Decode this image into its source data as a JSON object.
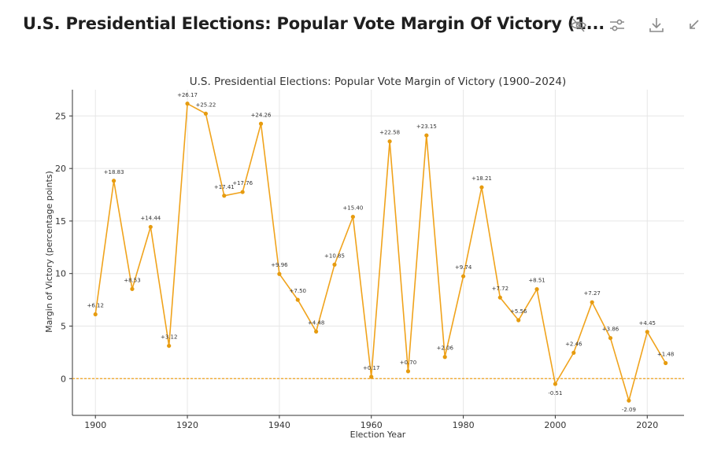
{
  "header": {
    "title": "U.S. Presidential Elections: Popular Vote Margin Of Victory (1...",
    "toolbar": [
      {
        "name": "hide-code-button",
        "icon": "eye-slash-icon"
      },
      {
        "name": "chart-settings-button",
        "icon": "sliders-icon"
      },
      {
        "name": "download-button",
        "icon": "download-icon"
      },
      {
        "name": "collapse-button",
        "icon": "collapse-arrow-icon"
      }
    ]
  },
  "colors": {
    "line": "#f0a31c",
    "point": "#e69b0f",
    "zero_line": "#f0a31c",
    "grid": "#e6e6e6",
    "axis": "#333333",
    "text": "#333333"
  },
  "chart_data": {
    "type": "line",
    "title": "U.S. Presidential Elections: Popular Vote Margin of Victory (1900–2024)",
    "xlabel": "Election Year",
    "ylabel": "Margin of Victory (percentage points)",
    "xlim": [
      1895,
      2028
    ],
    "ylim": [
      -3.5,
      27.5
    ],
    "xticks": [
      1900,
      1920,
      1940,
      1960,
      1980,
      2000,
      2020
    ],
    "yticks": [
      0,
      5,
      10,
      15,
      20,
      25
    ],
    "grid": true,
    "reference_line": {
      "y": 0,
      "style": "dashed"
    },
    "x": [
      1900,
      1904,
      1908,
      1912,
      1916,
      1920,
      1924,
      1928,
      1932,
      1936,
      1940,
      1944,
      1948,
      1952,
      1956,
      1960,
      1964,
      1968,
      1972,
      1976,
      1980,
      1984,
      1988,
      1992,
      1996,
      2000,
      2004,
      2008,
      2012,
      2016,
      2020,
      2024
    ],
    "y": [
      6.12,
      18.83,
      8.53,
      14.44,
      3.12,
      26.17,
      25.22,
      17.41,
      17.76,
      24.26,
      9.96,
      7.5,
      4.48,
      10.85,
      15.4,
      0.17,
      22.58,
      0.7,
      23.15,
      2.06,
      9.74,
      18.21,
      7.72,
      5.56,
      8.51,
      -0.51,
      2.46,
      7.27,
      3.86,
      -2.09,
      4.45,
      1.48
    ],
    "labels": [
      "+6.12",
      "+18.83",
      "+8.53",
      "+14.44",
      "+3.12",
      "+26.17",
      "+25.22",
      "+17.41",
      "+17.76",
      "+24.26",
      "+9.96",
      "+7.50",
      "+4.48",
      "+10.85",
      "+15.40",
      "+0.17",
      "+22.58",
      "+0.70",
      "+23.15",
      "+2.06",
      "+9.74",
      "+18.21",
      "+7.72",
      "+5.56",
      "+8.51",
      "-0.51",
      "+2.46",
      "+7.27",
      "+3.86",
      "-2.09",
      "+4.45",
      "+1.48"
    ]
  }
}
